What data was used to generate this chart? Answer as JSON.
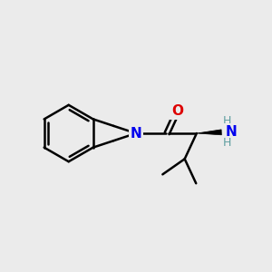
{
  "bg": "#ebebeb",
  "bond_color": "#000000",
  "N_color": "#0000ee",
  "O_color": "#dd0000",
  "NH_color": "#5f9ea0",
  "lw": 1.8,
  "figsize": [
    3.0,
    3.0
  ],
  "dpi": 100,
  "xlim": [
    0,
    10
  ],
  "ylim": [
    0,
    10
  ],
  "Nx": 5.0,
  "Ny": 5.1,
  "bcx": 2.5,
  "bcy": 5.1,
  "hex_r": 1.05
}
